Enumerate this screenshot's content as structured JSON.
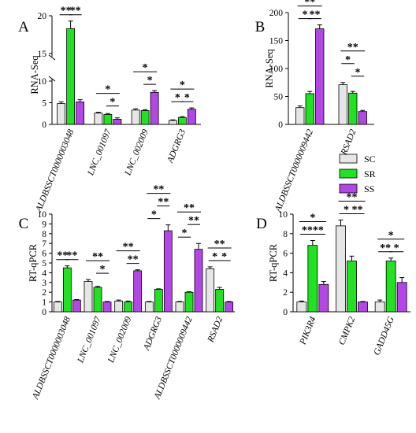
{
  "colors": {
    "SC": "#e6e6e6",
    "SR": "#22e022",
    "SS": "#b347e6"
  },
  "legend": [
    "SC",
    "SR",
    "SS"
  ],
  "chart_data": [
    {
      "id": "A",
      "type": "bar",
      "panel_label": "A",
      "ylabel": "RNA-Seq",
      "broken_axis": true,
      "categories": [
        "ALDBSSCT0000003048",
        "LNC_001097",
        "LNC_002009",
        "ADGRG3"
      ],
      "series": [
        {
          "name": "SC",
          "values": [
            4.8,
            2.6,
            3.3,
            0.9
          ],
          "errors": [
            0.4,
            0.2,
            0.3,
            0.15
          ]
        },
        {
          "name": "SR",
          "values": [
            18.3,
            2.3,
            3.2,
            1.6
          ],
          "errors": [
            1.0,
            0.2,
            0.2,
            0.2
          ]
        },
        {
          "name": "SS",
          "values": [
            5.2,
            1.2,
            7.4,
            3.5
          ],
          "errors": [
            0.5,
            0.3,
            0.4,
            0.3
          ]
        }
      ],
      "yticks": [
        0,
        5,
        10,
        15,
        20
      ],
      "sig": [
        {
          "text": "**",
          "c": 0,
          "from": 0,
          "to": 1,
          "level": 0
        },
        {
          "text": "**",
          "c": 0,
          "from": 1,
          "to": 2,
          "level": 0
        },
        {
          "text": "*",
          "c": 1,
          "from": 0,
          "to": 2,
          "level": 1
        },
        {
          "text": "*",
          "c": 1,
          "from": 1,
          "to": 2,
          "level": 0
        },
        {
          "text": "*",
          "c": 2,
          "from": 0,
          "to": 2,
          "level": 1
        },
        {
          "text": "*",
          "c": 2,
          "from": 1,
          "to": 2,
          "level": 0
        },
        {
          "text": "*",
          "c": 3,
          "from": 0,
          "to": 2,
          "level": 1
        },
        {
          "text": "*",
          "c": 3,
          "from": 0,
          "to": 1,
          "level": 0
        },
        {
          "text": "*",
          "c": 3,
          "from": 1,
          "to": 2,
          "level": 0
        }
      ]
    },
    {
      "id": "B",
      "type": "bar",
      "panel_label": "B",
      "ylabel": "RNA-Seq",
      "categories": [
        "ALDBSSCT0000009442",
        "RSAD2"
      ],
      "series": [
        {
          "name": "SC",
          "values": [
            30,
            71
          ],
          "errors": [
            3,
            4
          ]
        },
        {
          "name": "SR",
          "values": [
            55,
            56
          ],
          "errors": [
            4,
            3
          ]
        },
        {
          "name": "SS",
          "values": [
            171,
            23
          ],
          "errors": [
            7,
            2
          ]
        }
      ],
      "ylim": [
        0,
        200
      ],
      "yticks": [
        0,
        50,
        100,
        150,
        200
      ],
      "sig": [
        {
          "text": "**",
          "c": 0,
          "from": 0,
          "to": 2,
          "level": 1
        },
        {
          "text": "*",
          "c": 0,
          "from": 0,
          "to": 1,
          "level": 0
        },
        {
          "text": "**",
          "c": 0,
          "from": 1,
          "to": 2,
          "level": 0
        },
        {
          "text": "**",
          "c": 1,
          "from": 0,
          "to": 2,
          "level": 2
        },
        {
          "text": "*",
          "c": 1,
          "from": 0,
          "to": 1,
          "level": 1
        },
        {
          "text": "*",
          "c": 1,
          "from": 1,
          "to": 2,
          "level": 0
        }
      ]
    },
    {
      "id": "C",
      "type": "bar",
      "panel_label": "C",
      "ylabel": "RT-qPCR",
      "categories": [
        "ALDBSSCT0000003048",
        "LNC_001097",
        "LNC_002009",
        "ADGRG3",
        "ALDBSSCT0000009442",
        "RSAD2"
      ],
      "series": [
        {
          "name": "SC",
          "values": [
            1.0,
            3.1,
            1.1,
            1.0,
            1.0,
            4.4
          ],
          "errors": [
            0.05,
            0.2,
            0.1,
            0.05,
            0.05,
            0.2
          ]
        },
        {
          "name": "SR",
          "values": [
            4.5,
            2.5,
            1.0,
            2.3,
            2.0,
            2.3
          ],
          "errors": [
            0.2,
            0.1,
            0.1,
            0.05,
            0.05,
            0.2
          ]
        },
        {
          "name": "SS",
          "values": [
            1.2,
            1.0,
            4.2,
            8.3,
            6.4,
            1.0
          ],
          "errors": [
            0.05,
            0.05,
            0.1,
            0.6,
            0.6,
            0.05
          ]
        }
      ],
      "ylim": [
        0,
        10
      ],
      "yticks": [
        0,
        1,
        2,
        3,
        4,
        5,
        6,
        7,
        8,
        9,
        10
      ],
      "sig": [
        {
          "text": "**",
          "c": 0,
          "from": 0,
          "to": 1,
          "level": 0
        },
        {
          "text": "**",
          "c": 0,
          "from": 1,
          "to": 2,
          "level": 0
        },
        {
          "text": "**",
          "c": 1,
          "from": 0,
          "to": 2,
          "level": 1
        },
        {
          "text": "*",
          "c": 1,
          "from": 1,
          "to": 2,
          "level": 0
        },
        {
          "text": "**",
          "c": 2,
          "from": 0,
          "to": 2,
          "level": 1
        },
        {
          "text": "**",
          "c": 2,
          "from": 1,
          "to": 2,
          "level": 0
        },
        {
          "text": "*",
          "c": 3,
          "from": 0,
          "to": 1,
          "level": 0
        },
        {
          "text": "**",
          "c": 3,
          "from": 0,
          "to": 2,
          "level": 2
        },
        {
          "text": "**",
          "c": 3,
          "from": 1,
          "to": 2,
          "level": 1
        },
        {
          "text": "*",
          "c": 4,
          "from": 0,
          "to": 1,
          "level": 0
        },
        {
          "text": "**",
          "c": 4,
          "from": 0,
          "to": 2,
          "level": 2
        },
        {
          "text": "**",
          "c": 4,
          "from": 1,
          "to": 2,
          "level": 1
        },
        {
          "text": "**",
          "c": 5,
          "from": 0,
          "to": 2,
          "level": 1
        },
        {
          "text": "*",
          "c": 5,
          "from": 0,
          "to": 1,
          "level": 0
        },
        {
          "text": "*",
          "c": 5,
          "from": 1,
          "to": 2,
          "level": 0
        }
      ]
    },
    {
      "id": "D",
      "type": "bar",
      "panel_label": "D",
      "ylabel": "RT-qPCR",
      "categories": [
        "PIK3R4",
        "CMPK2",
        "GADD45G"
      ],
      "series": [
        {
          "name": "SC",
          "values": [
            1.0,
            8.8,
            1.0
          ],
          "errors": [
            0.1,
            0.6,
            0.2
          ]
        },
        {
          "name": "SR",
          "values": [
            6.8,
            5.2,
            5.2
          ],
          "errors": [
            0.5,
            0.5,
            0.3
          ]
        },
        {
          "name": "SS",
          "values": [
            2.8,
            1.0,
            3.0
          ],
          "errors": [
            0.3,
            0.05,
            0.5
          ]
        }
      ],
      "ylim": [
        0,
        10
      ],
      "yticks": [
        0,
        2,
        4,
        6,
        8,
        10
      ],
      "sig": [
        {
          "text": "*",
          "c": 0,
          "from": 0,
          "to": 2,
          "level": 1
        },
        {
          "text": "**",
          "c": 0,
          "from": 0,
          "to": 1,
          "level": 0
        },
        {
          "text": "**",
          "c": 0,
          "from": 1,
          "to": 2,
          "level": 0
        },
        {
          "text": "*",
          "c": 1,
          "from": 0,
          "to": 1,
          "level": 0
        },
        {
          "text": "**",
          "c": 1,
          "from": 0,
          "to": 2,
          "level": 1
        },
        {
          "text": "**",
          "c": 1,
          "from": 1,
          "to": 2,
          "level": 0
        },
        {
          "text": "*",
          "c": 2,
          "from": 0,
          "to": 2,
          "level": 1
        },
        {
          "text": "**",
          "c": 2,
          "from": 0,
          "to": 1,
          "level": 0
        },
        {
          "text": "*",
          "c": 2,
          "from": 1,
          "to": 2,
          "level": 0
        }
      ]
    }
  ]
}
